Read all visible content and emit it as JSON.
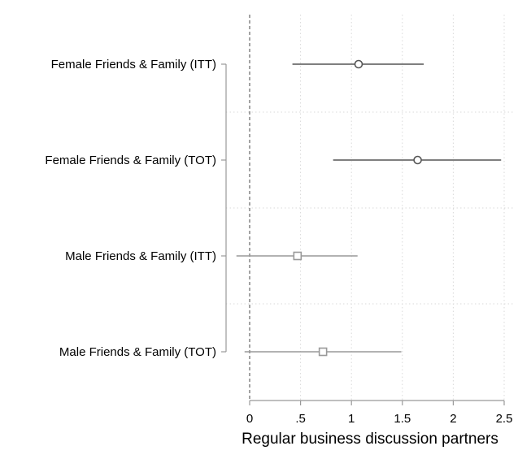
{
  "chart_data": {
    "type": "scatter",
    "subtype": "coefficient-plot",
    "xlabel": "Regular business discussion partners",
    "xlim": [
      -0.1,
      2.55
    ],
    "x_ticks": [
      0,
      0.5,
      1,
      1.5,
      2,
      2.5
    ],
    "x_tick_labels": [
      "0",
      ".5",
      "1",
      "1.5",
      "2",
      "2.5"
    ],
    "reference_line_x": 0,
    "grid": true,
    "series": [
      {
        "marker": "circle",
        "color": "#555555",
        "points": [
          {
            "label": "Female Friends & Family (ITT)",
            "estimate": 1.07,
            "ci_low": 0.42,
            "ci_high": 1.71
          },
          {
            "label": "Female Friends & Family (TOT)",
            "estimate": 1.65,
            "ci_low": 0.82,
            "ci_high": 2.47
          }
        ]
      },
      {
        "marker": "square",
        "color": "#999999",
        "points": [
          {
            "label": "Male Friends & Family (ITT)",
            "estimate": 0.47,
            "ci_low": -0.13,
            "ci_high": 1.06
          },
          {
            "label": "Male Friends & Family (TOT)",
            "estimate": 0.72,
            "ci_low": -0.05,
            "ci_high": 1.49
          }
        ]
      }
    ]
  }
}
